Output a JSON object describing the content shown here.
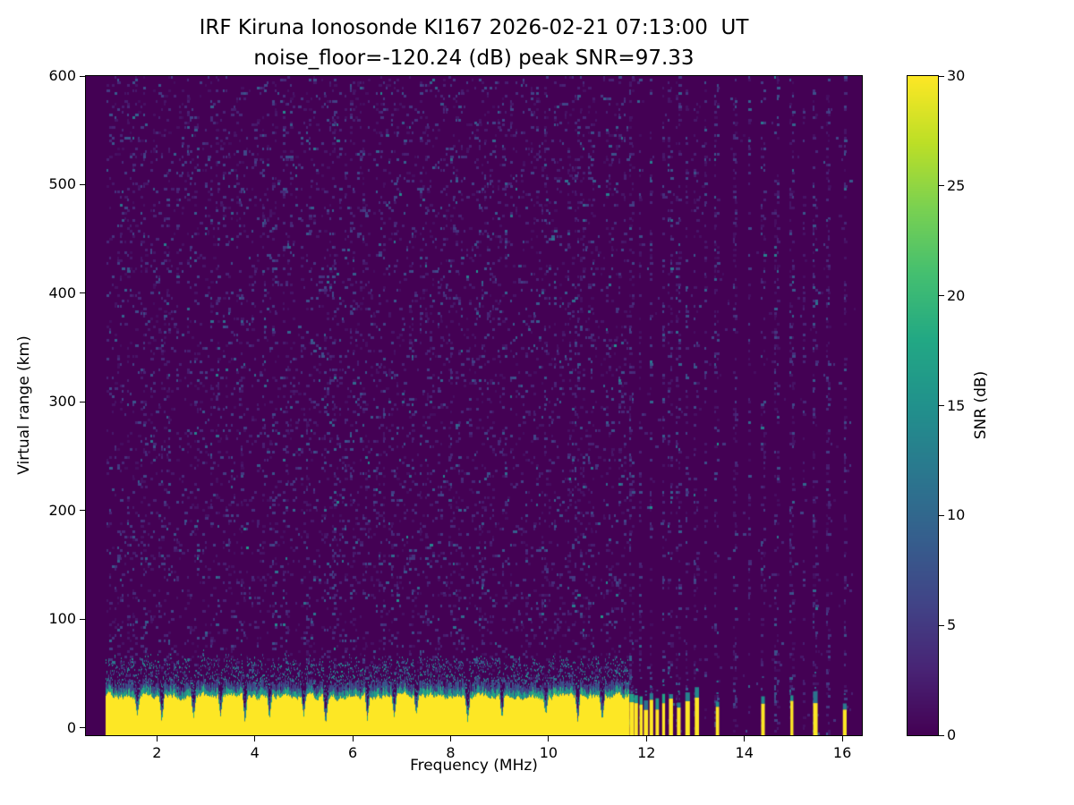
{
  "chart_data": {
    "type": "heatmap",
    "title": "IRF Kiruna Ionosonde KI167 2026-02-21 07:13:00  UT",
    "subtitle": "noise_floor=-120.24 (dB) peak SNR=97.33",
    "station": "KI167",
    "timestamp_ut": "2026-02-21 07:13:00",
    "noise_floor_db": -120.24,
    "peak_snr_db": 97.33,
    "xlabel": "Frequency (MHz)",
    "ylabel": "Virtual range (km)",
    "xlim": [
      0.55,
      16.4
    ],
    "ylim": [
      -7,
      600
    ],
    "x_ticks": [
      2,
      4,
      6,
      8,
      10,
      12,
      14,
      16
    ],
    "y_ticks": [
      0,
      100,
      200,
      300,
      400,
      500,
      600
    ],
    "grid": false,
    "legend": "none",
    "colorbar": {
      "label": "SNR (dB)",
      "vmin": 0,
      "vmax": 30,
      "ticks": [
        0,
        5,
        10,
        15,
        20,
        25,
        30
      ],
      "position": "right"
    },
    "colormap": {
      "name": "viridis",
      "stops": [
        "#440154",
        "#482475",
        "#414487",
        "#355f8d",
        "#2a788e",
        "#21918c",
        "#22a884",
        "#44bf70",
        "#7ad151",
        "#bddf26",
        "#fde725"
      ]
    },
    "sweep": {
      "data_start_mhz": 0.95,
      "data_end_mhz": 16.32
    },
    "echo_band": {
      "freq_start_mhz": 0.95,
      "freq_end_mhz": 11.62,
      "top_km_mean": 27,
      "top_km_jitter": 10,
      "snr_db": 30,
      "notch_freqs_mhz": [
        1.6,
        2.1,
        2.75,
        3.3,
        3.8,
        4.3,
        5.0,
        5.45,
        6.3,
        6.85,
        7.3,
        8.35,
        9.05,
        9.95,
        10.6,
        11.1
      ]
    },
    "discrete_stripes": {
      "freqs_mhz": [
        11.7,
        11.79,
        11.89,
        11.99,
        12.1,
        12.22,
        12.35,
        12.5,
        12.66,
        12.84,
        13.03,
        13.45,
        14.38,
        14.97,
        15.45,
        16.05
      ],
      "top_km": 24,
      "snr_db": 30
    },
    "noise_columns_mhz": [
      11.7,
      11.89,
      12.1,
      12.35,
      12.5,
      12.66,
      12.84,
      13.03,
      13.2,
      13.45,
      13.8,
      14.1,
      14.38,
      14.65,
      14.97,
      15.2,
      15.45,
      15.7,
      16.05
    ],
    "background": {
      "base_db": 0,
      "speckle_density": 0.13,
      "speckle_max_db": 9
    }
  }
}
